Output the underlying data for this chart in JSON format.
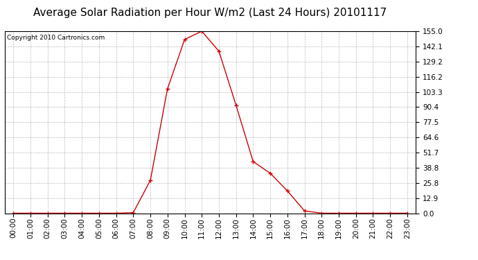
{
  "title": "Average Solar Radiation per Hour W/m2 (Last 24 Hours) 20101117",
  "copyright": "Copyright 2010 Cartronics.com",
  "hours": [
    "00:00",
    "01:00",
    "02:00",
    "03:00",
    "04:00",
    "05:00",
    "06:00",
    "07:00",
    "08:00",
    "09:00",
    "10:00",
    "11:00",
    "12:00",
    "13:00",
    "14:00",
    "15:00",
    "16:00",
    "17:00",
    "18:00",
    "19:00",
    "20:00",
    "21:00",
    "22:00",
    "23:00"
  ],
  "values": [
    0.0,
    0.0,
    0.0,
    0.0,
    0.0,
    0.0,
    0.0,
    0.5,
    28.0,
    106.0,
    148.0,
    155.0,
    138.0,
    92.0,
    44.0,
    34.0,
    19.0,
    2.0,
    0.0,
    0.0,
    0.0,
    0.0,
    0.0,
    0.0
  ],
  "line_color": "#cc0000",
  "marker": "+",
  "marker_size": 4,
  "background_color": "#ffffff",
  "plot_bg_color": "#ffffff",
  "grid_color": "#bbbbbb",
  "ymin": 0.0,
  "ymax": 155.0,
  "yticks": [
    0.0,
    12.9,
    25.8,
    38.8,
    51.7,
    64.6,
    77.5,
    90.4,
    103.3,
    116.2,
    129.2,
    142.1,
    155.0
  ],
  "title_fontsize": 11,
  "copyright_fontsize": 6.5,
  "tick_fontsize": 7.5
}
